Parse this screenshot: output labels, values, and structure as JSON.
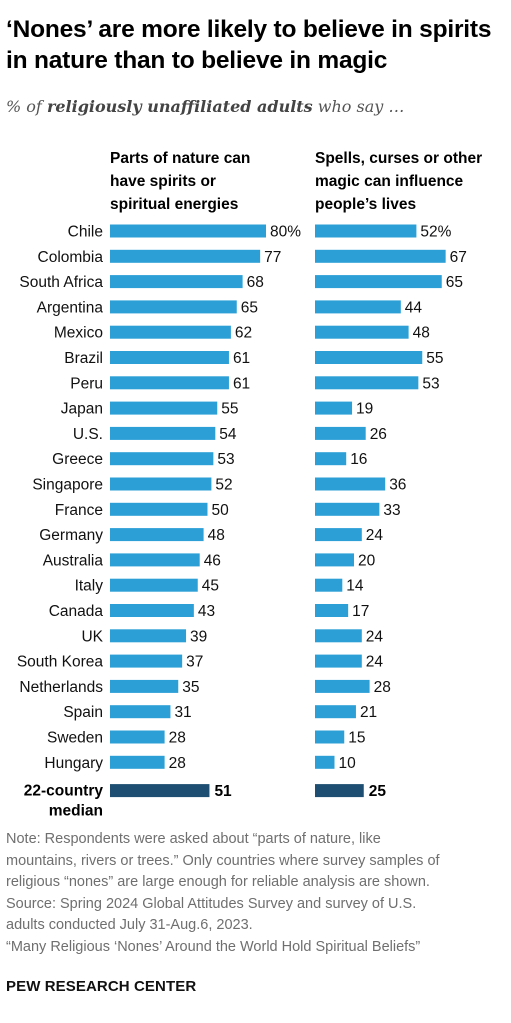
{
  "title": "‘Nones’ are more likely to believe in spirits in nature than to believe in magic",
  "subtitle": {
    "prefix": "% of ",
    "emphasis": "religiously unaffiliated adults",
    "suffix": " who say …"
  },
  "chart_data": {
    "type": "bar",
    "orientation": "horizontal",
    "value_suffix_first": "%",
    "categories": [
      "Chile",
      "Colombia",
      "South Africa",
      "Argentina",
      "Mexico",
      "Brazil",
      "Peru",
      "Japan",
      "U.S.",
      "Greece",
      "Singapore",
      "France",
      "Germany",
      "Australia",
      "Italy",
      "Canada",
      "UK",
      "South Korea",
      "Netherlands",
      "Spain",
      "Sweden",
      "Hungary"
    ],
    "series": [
      {
        "name": "Parts of nature can have spirits or spiritual energies",
        "name_lines": [
          "Parts of nature can",
          "have spirits or",
          "spiritual energies"
        ],
        "values": [
          80,
          77,
          68,
          65,
          62,
          61,
          61,
          55,
          54,
          53,
          52,
          50,
          48,
          46,
          45,
          43,
          39,
          37,
          35,
          31,
          28,
          28
        ],
        "median": 51
      },
      {
        "name": "Spells, curses or other magic can influence people’s lives",
        "name_lines": [
          "Spells, curses or other",
          "magic can influence",
          "people’s lives"
        ],
        "values": [
          52,
          67,
          65,
          44,
          48,
          55,
          53,
          19,
          26,
          16,
          36,
          33,
          24,
          20,
          14,
          17,
          24,
          24,
          28,
          21,
          15,
          10
        ],
        "median": 25
      }
    ],
    "median_label_lines": [
      "22-country",
      "median"
    ],
    "colors": {
      "bar": "#2b9fd6",
      "median_bar": "#1e4f72"
    }
  },
  "notes": [
    "Note: Respondents were asked about “parts of nature, like",
    "mountains, rivers or trees.” Only countries where survey samples of",
    "religious “nones” are large enough for reliable analysis are shown.",
    "Source: Spring 2024 Global Attitudes Survey and survey of U.S.",
    "adults conducted July 31-Aug.6, 2023.",
    "“Many Religious ‘Nones’ Around the World Hold Spiritual Beliefs”"
  ],
  "source_org": "PEW RESEARCH CENTER"
}
